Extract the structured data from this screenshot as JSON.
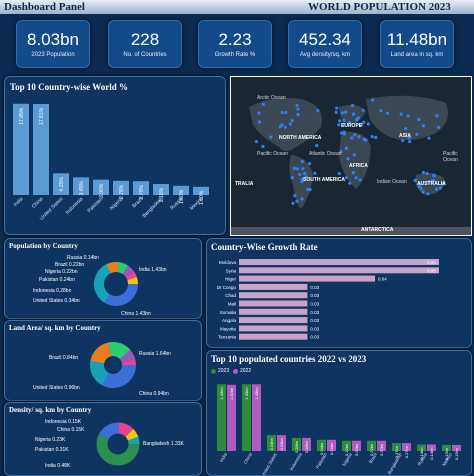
{
  "header": {
    "left_title": "Dashboard Panel",
    "right_title": "WORLD POPULATION 2023"
  },
  "kpis": [
    {
      "value": "8.03bn",
      "label": "2023 Population"
    },
    {
      "value": "228",
      "label": "No. of Countries"
    },
    {
      "value": "2.23",
      "label": "Growth Rate %"
    },
    {
      "value": "452.34",
      "label": "Avg density/sq. km"
    },
    {
      "value": "11.48bn",
      "label": "Land area in sq. km"
    }
  ],
  "top10_world": {
    "title": "Top 10 Country-wise World %",
    "chart_data": {
      "type": "bar",
      "categories": [
        "India",
        "China",
        "United States",
        "Indonesia",
        "Pakistan",
        "Nigeria",
        "Brazil",
        "Bangladesh",
        "Russia",
        "Mexico"
      ],
      "values": [
        17.85,
        17.81,
        4.25,
        3.45,
        3.0,
        2.78,
        2.7,
        2.15,
        1.8,
        1.6
      ],
      "labels": [
        "17.85%",
        "17.81%",
        "4.25%",
        "3.45%",
        "3.00%",
        "2.78%",
        "2.70%",
        "2.15%",
        "1.80%",
        "1.60%"
      ],
      "color": "#5b9bd5"
    }
  },
  "map": {
    "labels": [
      {
        "text": "Arctic Ocean"
      },
      {
        "text": "NORTH AMERICA"
      },
      {
        "text": "EUROPE"
      },
      {
        "text": "ASIA"
      },
      {
        "text": "Pacific Ocean"
      },
      {
        "text": "Atlantic Ocean"
      },
      {
        "text": "AFRICA"
      },
      {
        "text": "Pacific Ocean"
      },
      {
        "text": "SOUTH AMERICA"
      },
      {
        "text": "Indian Ocean"
      },
      {
        "text": "AUSTRALIA"
      },
      {
        "text": "TRALIA"
      },
      {
        "text": "ANTARCTICA"
      }
    ]
  },
  "population_by_country": {
    "title": "Population by Country",
    "left_labels": [
      "Russia 0.14bn",
      "Brazil 0.22bn",
      "Nigeria 0.22bn",
      "Pakistan 0.24bn",
      "Indonesia 0.28bn",
      "United States 0.34bn"
    ],
    "right_labels": [
      "India 1.43bn",
      "China 1.43bn"
    ]
  },
  "land_area": {
    "title": "Land Area/ sq. km by Country",
    "left_labels": [
      "Brazil 0.84bn",
      "United States 0.96bn"
    ],
    "right_labels": [
      "Russia 1.64bn",
      "China 0.94bn"
    ]
  },
  "density": {
    "title": "Density/ sq. km by Country",
    "left_labels": [
      "Indonesia 0.15K",
      "China 0.15K",
      "Nigeria 0.23K",
      "Pakistan 0.31K",
      "India 0.48K"
    ],
    "right_labels": [
      "Bangladesh 1.33K"
    ]
  },
  "growth_rate": {
    "title": "Country-Wise Growth Rate",
    "chart_data": {
      "type": "bar",
      "categories": [
        "Moldova",
        "Syria",
        "Niger",
        "Dr Congo",
        "Chad",
        "Mali",
        "Somalia",
        "Angola",
        "Mayotte",
        "Tanzania"
      ],
      "values": [
        0.05,
        0.05,
        0.04,
        0.03,
        0.03,
        0.03,
        0.03,
        0.03,
        0.03,
        0.03
      ],
      "labels": [
        "0.05",
        "0.05",
        "0.04",
        "0.03",
        "0.03",
        "0.03",
        "0.03",
        "0.03",
        "0.03",
        "0.03"
      ],
      "color": "#c8a2c8"
    }
  },
  "top10_compare": {
    "title": "Top 10 populated countries 2022 vs 2023",
    "legend": [
      {
        "name": "2023",
        "color": "#2e8b3c"
      },
      {
        "name": "2022",
        "color": "#b05bc0"
      }
    ],
    "chart_data": {
      "type": "bar",
      "categories": [
        "India",
        "China",
        "United States",
        "Indonesia",
        "Pakistan",
        "Nigeria",
        "Brazil",
        "Bangladesh",
        "Russia",
        "Mexico"
      ],
      "series": [
        {
          "name": "2023",
          "values": [
            1.43,
            1.43,
            0.34,
            0.28,
            0.24,
            0.22,
            0.22,
            0.17,
            0.14,
            0.13
          ],
          "labels": [
            "1.43bn",
            "1.43bn",
            "0.34bn",
            "0.28bn",
            "0.24bn",
            "0.22bn",
            "0.22bn",
            "0.17bn",
            "0.14bn",
            "0.13bn"
          ]
        },
        {
          "name": "2022",
          "values": [
            1.42,
            1.43,
            0.34,
            0.28,
            0.24,
            0.22,
            0.22,
            0.17,
            0.14,
            0.13
          ],
          "labels": [
            "1.42bn",
            "1.43bn",
            "0.34bn",
            "0.28bn",
            "0.24bn",
            "0.22bn",
            "0.22bn",
            "0.17bn",
            "0.14bn",
            "0.13bn"
          ]
        }
      ]
    }
  }
}
